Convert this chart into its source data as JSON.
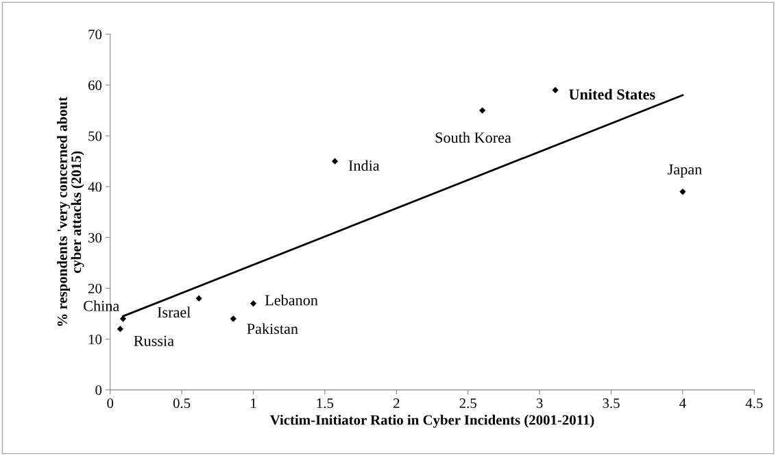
{
  "chart_data": {
    "type": "scatter",
    "xlabel": "Victim-Initiator Ratio in Cyber Incidents (2001-2011)",
    "ylabel": "% respondents 'very concerned about cyber attacks (2015)",
    "xlim": [
      0,
      4.5
    ],
    "xticks": [
      0,
      0.5,
      1,
      1.5,
      2,
      2.5,
      3,
      3.5,
      4,
      4.5
    ],
    "ylim": [
      0,
      70
    ],
    "yticks": [
      0,
      10,
      20,
      30,
      40,
      50,
      60,
      70
    ],
    "grid": false,
    "legend": false,
    "marker": "diamond",
    "series": [
      {
        "color": "#000000",
        "x": [
          0.09,
          0.07,
          0.62,
          0.86,
          1.0,
          1.57,
          2.6,
          3.11,
          4.0
        ],
        "values": [
          14,
          12,
          18,
          14,
          17,
          45,
          55,
          59,
          39
        ]
      },
      {
        "type": "line",
        "color": "#000000",
        "line_style": "solid",
        "marker": "none",
        "x": [
          0.09,
          4.0
        ],
        "values": [
          14.5,
          58
        ]
      }
    ],
    "annotations": [
      {
        "text": "China",
        "x": 0.09,
        "y": 14
      },
      {
        "text": "Russia",
        "x": 0.07,
        "y": 12
      },
      {
        "text": "Israel",
        "x": 0.62,
        "y": 18
      },
      {
        "text": "Pakistan",
        "x": 0.86,
        "y": 14
      },
      {
        "text": "Lebanon",
        "x": 1.0,
        "y": 17
      },
      {
        "text": "India",
        "x": 1.57,
        "y": 45
      },
      {
        "text": "South Korea",
        "x": 2.6,
        "y": 55
      },
      {
        "text": "United States",
        "x": 3.11,
        "y": 59
      },
      {
        "text": "Japan",
        "x": 4.0,
        "y": 39
      }
    ]
  }
}
